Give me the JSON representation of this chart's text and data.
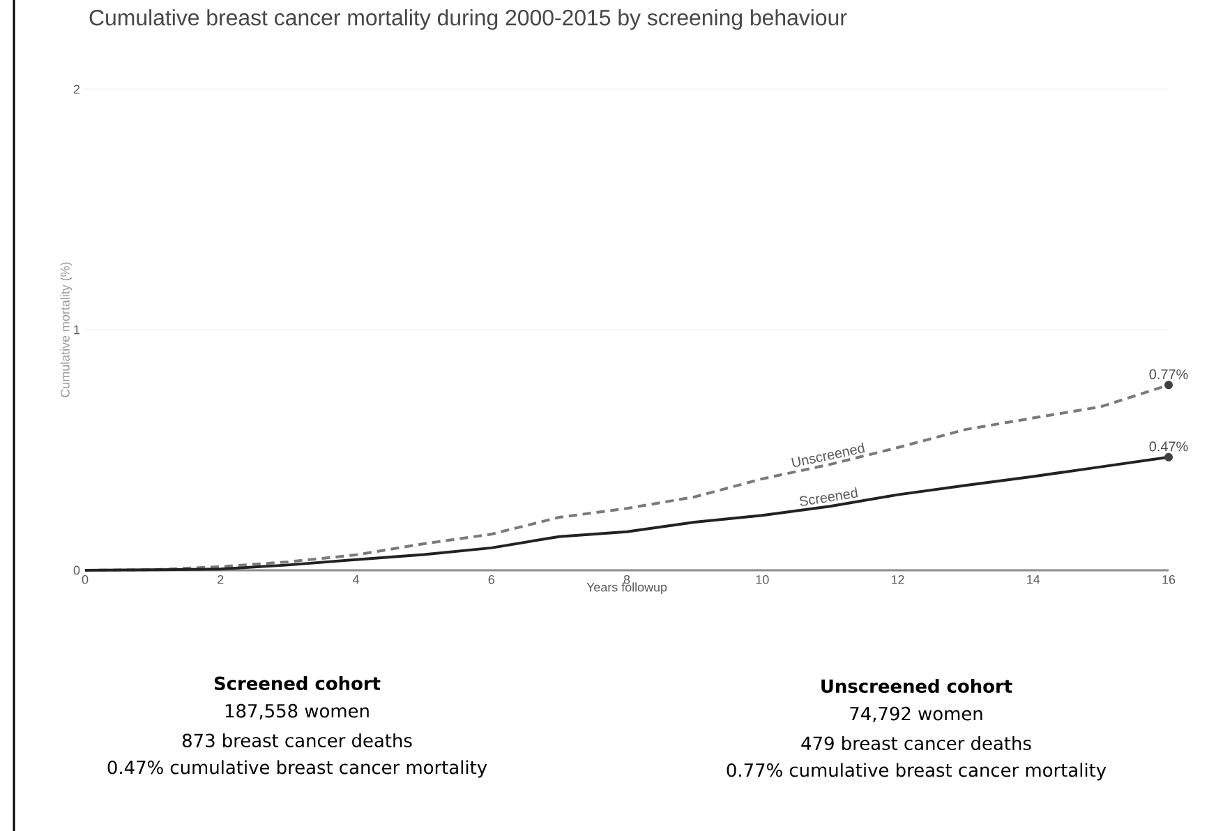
{
  "chart_data": {
    "type": "line",
    "title": "Cumulative breast cancer mortality during 2000-2015 by screening behaviour",
    "xlabel": "Years followup",
    "ylabel": "Cumulative mortality (%)",
    "x": [
      0,
      1,
      2,
      3,
      4,
      5,
      6,
      7,
      8,
      9,
      10,
      11,
      12,
      13,
      14,
      15,
      16
    ],
    "series": [
      {
        "name": "Unscreened",
        "color": "#7a7a7a",
        "line_style": "dashed",
        "values": [
          0,
          0.002,
          0.015,
          0.035,
          0.064,
          0.11,
          0.15,
          0.22,
          0.257,
          0.305,
          0.38,
          0.44,
          0.51,
          0.585,
          0.633,
          0.68,
          0.77
        ]
      },
      {
        "name": "Screened",
        "color": "#222222",
        "line_style": "solid",
        "values": [
          0,
          0.002,
          0.005,
          0.022,
          0.044,
          0.065,
          0.093,
          0.14,
          0.16,
          0.2,
          0.228,
          0.266,
          0.314,
          0.353,
          0.39,
          0.43,
          0.47
        ]
      }
    ],
    "xlim": [
      0,
      16
    ],
    "ylim": [
      0,
      2
    ],
    "xticks": [
      0,
      2,
      4,
      6,
      8,
      10,
      12,
      14,
      16
    ],
    "yticks": [
      0,
      1,
      2
    ],
    "grid": "y",
    "legend": false,
    "marker": "none",
    "annotations": [
      {
        "text": "0.77%",
        "x": 16,
        "y": 0.77
      },
      {
        "text": "0.47%",
        "x": 16,
        "y": 0.47
      },
      "Screened cohort",
      "187,558 women",
      "873 breast cancer deaths",
      "0.47% cumulative breast cancer mortality",
      "Unscreened cohort",
      "74,792 women",
      "479 breast cancer deaths",
      "0.77% cumulative breast cancer mortality"
    ]
  }
}
